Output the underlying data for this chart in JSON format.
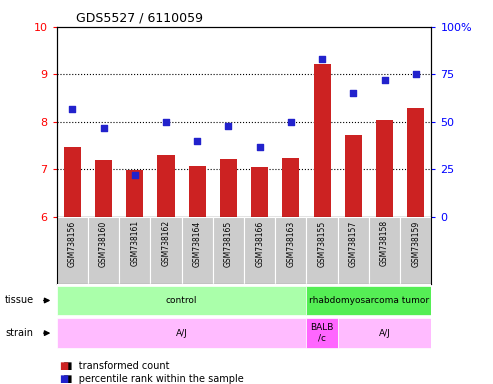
{
  "title": "GDS5527 / 6110059",
  "samples": [
    "GSM738156",
    "GSM738160",
    "GSM738161",
    "GSM738162",
    "GSM738164",
    "GSM738165",
    "GSM738166",
    "GSM738163",
    "GSM738155",
    "GSM738157",
    "GSM738158",
    "GSM738159"
  ],
  "bar_values": [
    7.48,
    7.2,
    6.98,
    7.3,
    7.08,
    7.22,
    7.05,
    7.25,
    9.22,
    7.72,
    8.05,
    8.3
  ],
  "scatter_pct": [
    57,
    47,
    22,
    50,
    40,
    48,
    37,
    50,
    83,
    65,
    72,
    75
  ],
  "ylim_left": [
    6,
    10
  ],
  "ylim_right": [
    0,
    100
  ],
  "yticks_left": [
    6,
    7,
    8,
    9,
    10
  ],
  "yticks_right": [
    0,
    25,
    50,
    75,
    100
  ],
  "ytick_right_labels": [
    "0",
    "25",
    "50",
    "75",
    "100%"
  ],
  "hlines": [
    7,
    8,
    9
  ],
  "bar_color": "#cc2222",
  "scatter_color": "#2222cc",
  "tissue_groups": [
    {
      "label": "control",
      "start": 0,
      "end": 8,
      "color": "#aaffaa"
    },
    {
      "label": "rhabdomyosarcoma tumor",
      "start": 8,
      "end": 12,
      "color": "#55ee55"
    }
  ],
  "strain_groups": [
    {
      "label": "A/J",
      "start": 0,
      "end": 8,
      "color": "#ffbbff"
    },
    {
      "label": "BALB\n/c",
      "start": 8,
      "end": 9,
      "color": "#ff66ff"
    },
    {
      "label": "A/J",
      "start": 9,
      "end": 12,
      "color": "#ffbbff"
    }
  ],
  "xticklabel_bg": "#cccccc",
  "tissue_label": "tissue",
  "strain_label": "strain",
  "legend_items": [
    {
      "color": "#cc2222",
      "label": "transformed count"
    },
    {
      "color": "#2222cc",
      "label": "percentile rank within the sample"
    }
  ]
}
